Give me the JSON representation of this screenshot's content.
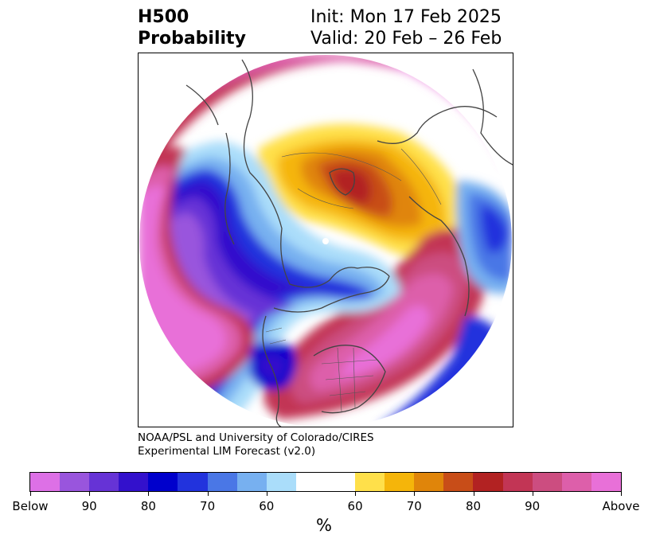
{
  "title": {
    "left_line1": "H500",
    "left_line2": "Probability",
    "right_line1": "Init: Mon 17 Feb 2025",
    "right_line2": "Valid: 20 Feb – 26 Feb"
  },
  "credit": {
    "line1": "NOAA/PSL and University of Colorado/CIRES",
    "line2": "Experimental LIM Forecast (v2.0)"
  },
  "colorbar": {
    "unit": "%",
    "colors": [
      "#dd70e6",
      "#9955dd",
      "#6633d6",
      "#3311cc",
      "#0000cc",
      "#2233dd",
      "#4a77e6",
      "#77b0f0",
      "#aaddfa",
      "#ffffff",
      "#ffe04a",
      "#f5b50a",
      "#e0850a",
      "#c84d18",
      "#b22222",
      "#c23555",
      "#cc4d80",
      "#dd5faa",
      "#e870d8"
    ],
    "ticks": [
      "Below",
      "90",
      "80",
      "70",
      "60",
      "60",
      "70",
      "80",
      "90",
      "Above"
    ]
  },
  "map": {
    "projection": "north-polar-stereographic",
    "feature_colors": {
      "coast": "#444444",
      "borders": "#555555"
    }
  }
}
